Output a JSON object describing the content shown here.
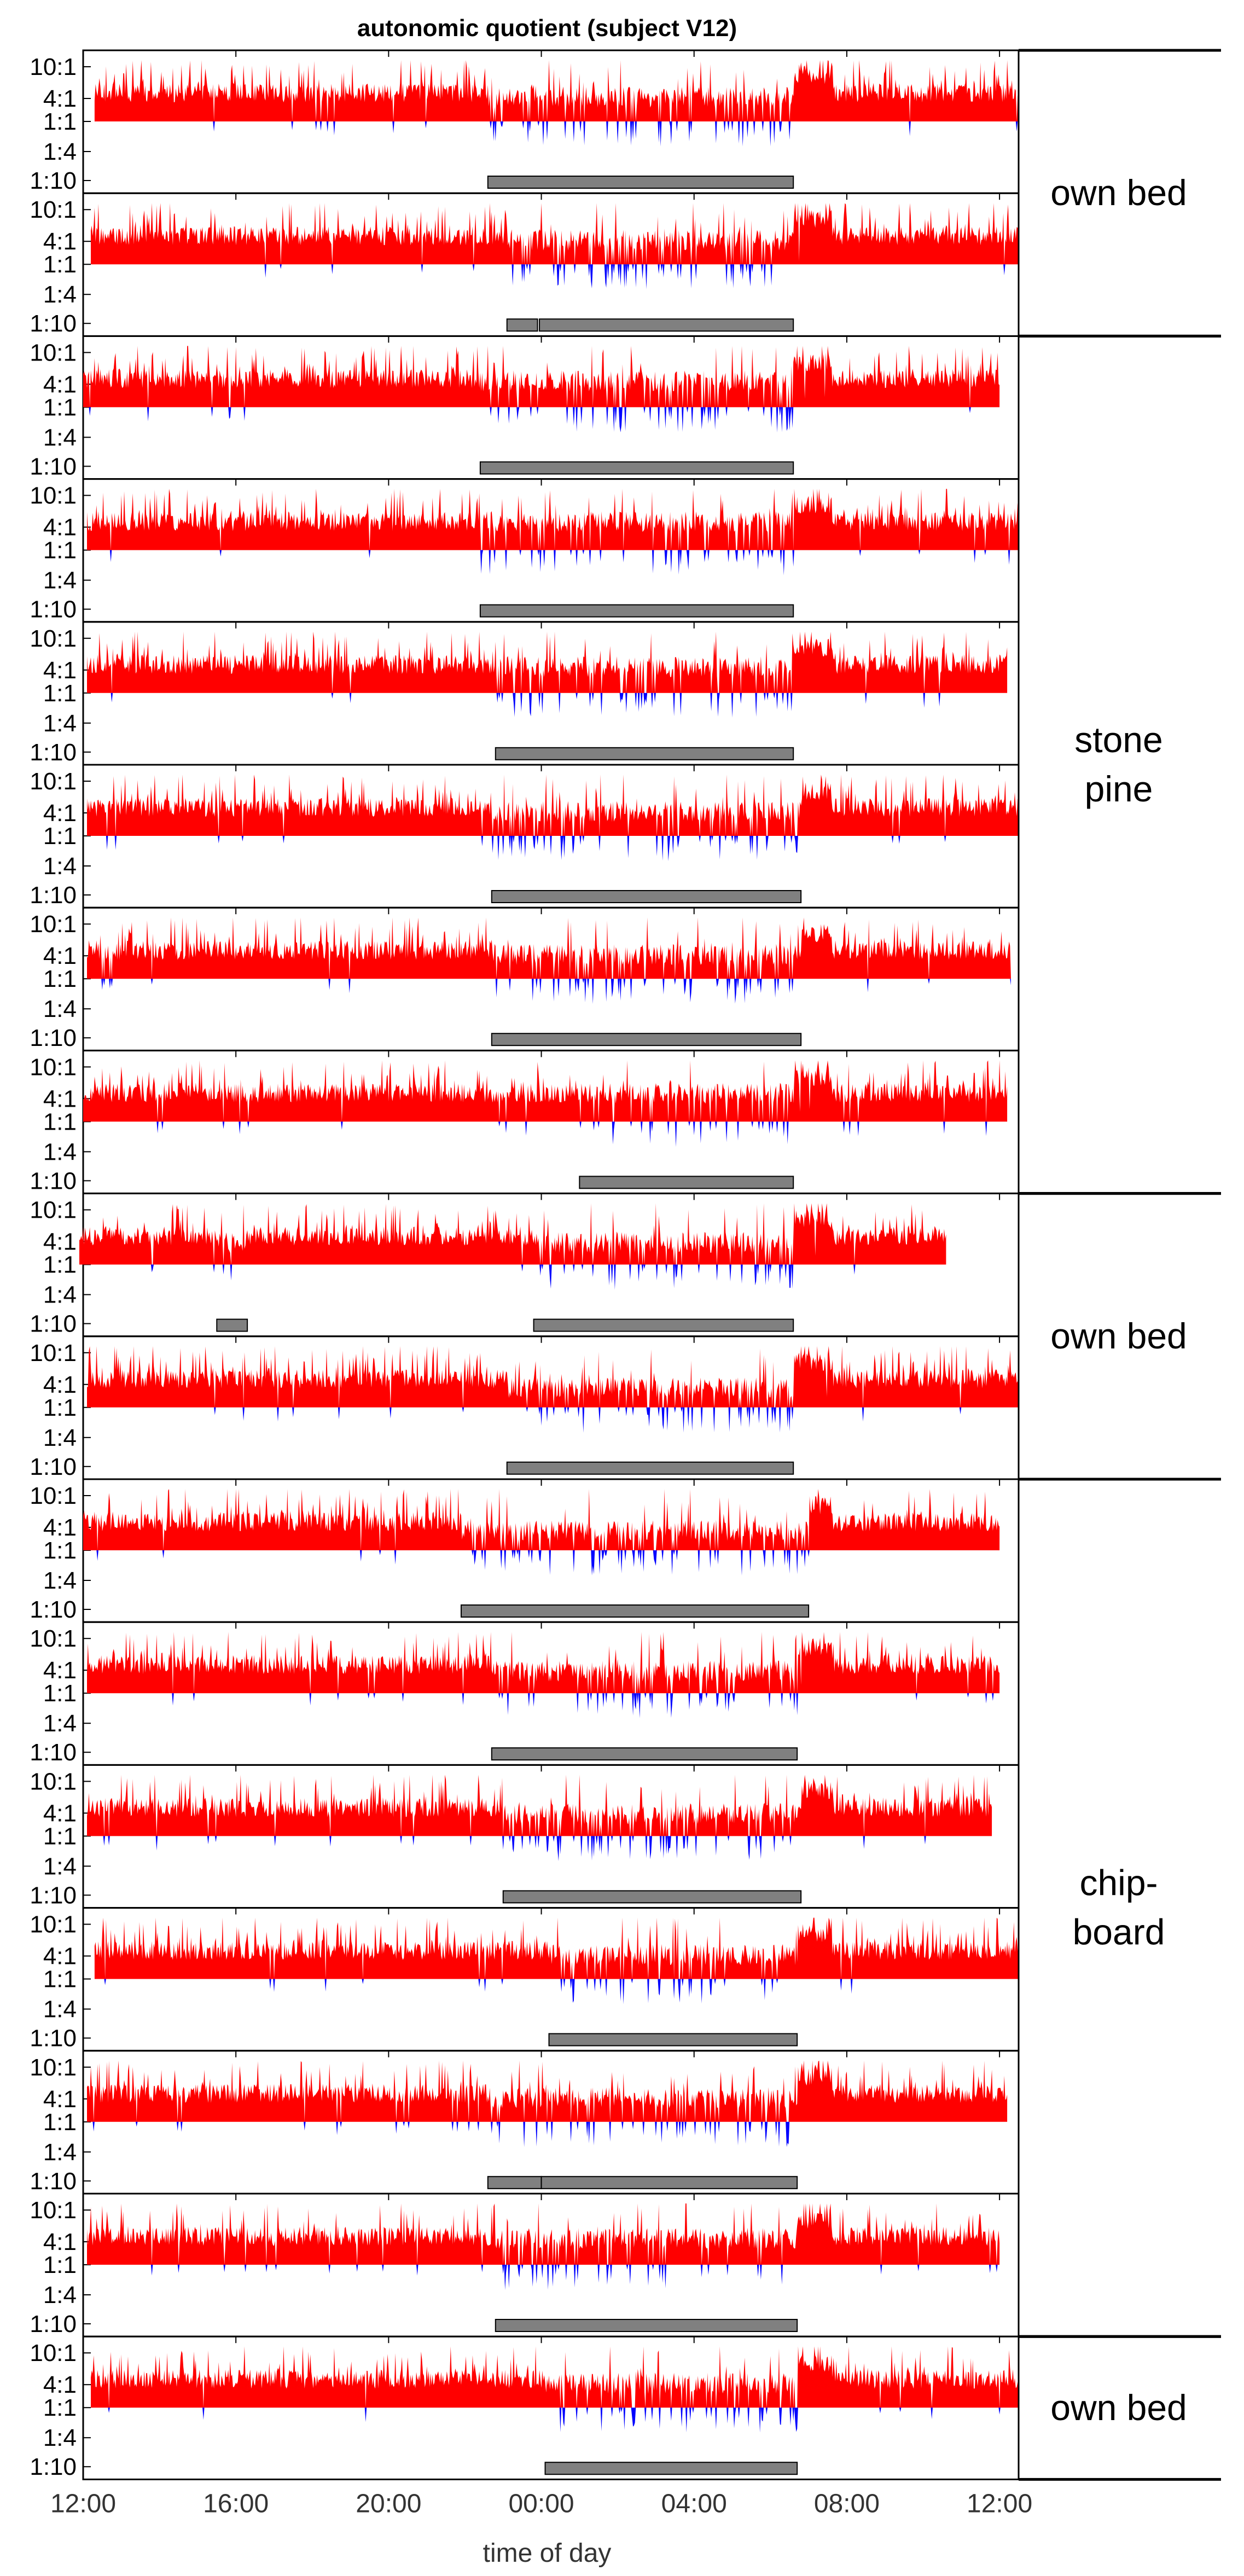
{
  "chart_data": {
    "type": "area",
    "title": "autonomic quotient (subject V12)",
    "xlabel": "time of day",
    "ylabel": "",
    "x_ticks": [
      "12:00",
      "16:00",
      "20:00",
      "00:00",
      "04:00",
      "08:00",
      "12:00"
    ],
    "x_range_hours": [
      12,
      36.5
    ],
    "y_ticks": [
      "10:1",
      "4:1",
      "1:1",
      "1:4",
      "1:10"
    ],
    "y_scale": "log ratio",
    "colors": {
      "above_1_1": "#ff0000",
      "below_1_1": "#0000ff",
      "rest_bar": "#808080"
    },
    "groups": [
      {
        "label": "own bed",
        "nights": [
          1,
          2
        ]
      },
      {
        "label": "stone pine",
        "nights": [
          3,
          4,
          5,
          6,
          7,
          8
        ]
      },
      {
        "label": "own bed",
        "nights": [
          9,
          10
        ]
      },
      {
        "label": "chip-board",
        "nights": [
          11,
          12,
          13,
          14,
          15,
          16
        ]
      },
      {
        "label": "own bed",
        "nights": [
          17
        ]
      }
    ],
    "nights": [
      {
        "night": 1,
        "start": 12.3,
        "end": 36.5,
        "dip_level": 1.0,
        "rest_periods": [
          [
            22.6,
            30.6
          ]
        ]
      },
      {
        "night": 2,
        "start": 12.2,
        "end": 36.5,
        "dip_level": 1.0,
        "rest_periods": [
          [
            23.1,
            23.9
          ],
          [
            23.95,
            30.6
          ]
        ]
      },
      {
        "night": 3,
        "start": 12.0,
        "end": 36.0,
        "dip_level": 1.1,
        "rest_periods": [
          [
            22.4,
            30.6
          ]
        ]
      },
      {
        "night": 4,
        "start": 12.1,
        "end": 36.5,
        "dip_level": 1.2,
        "rest_periods": [
          [
            22.4,
            30.6
          ]
        ]
      },
      {
        "night": 5,
        "start": 12.1,
        "end": 36.2,
        "dip_level": 1.1,
        "rest_periods": [
          [
            22.8,
            30.6
          ]
        ]
      },
      {
        "night": 6,
        "start": 12.1,
        "end": 36.5,
        "dip_level": 1.0,
        "rest_periods": [
          [
            22.7,
            30.8
          ]
        ]
      },
      {
        "night": 7,
        "start": 12.1,
        "end": 36.3,
        "dip_level": 1.0,
        "rest_periods": [
          [
            22.7,
            30.8
          ]
        ]
      },
      {
        "night": 8,
        "start": 12.0,
        "end": 36.2,
        "dip_level": 1.2,
        "rest_periods": [
          [
            25.0,
            30.6
          ]
        ]
      },
      {
        "night": 9,
        "start": 11.9,
        "end": 34.6,
        "dip_level": 0.9,
        "rest_periods": [
          [
            15.5,
            16.3
          ],
          [
            23.8,
            30.6
          ]
        ]
      },
      {
        "night": 10,
        "start": 12.1,
        "end": 36.5,
        "dip_level": 0.8,
        "rest_periods": [
          [
            23.1,
            30.6
          ]
        ]
      },
      {
        "night": 11,
        "start": 12.0,
        "end": 36.0,
        "dip_level": 0.8,
        "rest_periods": [
          [
            21.9,
            31.0
          ]
        ]
      },
      {
        "night": 12,
        "start": 12.1,
        "end": 36.0,
        "dip_level": 0.9,
        "rest_periods": [
          [
            22.7,
            30.7
          ]
        ]
      },
      {
        "night": 13,
        "start": 12.1,
        "end": 35.8,
        "dip_level": 0.9,
        "rest_periods": [
          [
            23.0,
            30.8
          ]
        ]
      },
      {
        "night": 14,
        "start": 12.3,
        "end": 36.5,
        "dip_level": 1.0,
        "rest_periods": [
          [
            24.2,
            30.7
          ]
        ]
      },
      {
        "night": 15,
        "start": 12.1,
        "end": 36.2,
        "dip_level": 1.0,
        "rest_periods": [
          [
            22.6,
            24.0
          ],
          [
            24.0,
            30.7
          ]
        ]
      },
      {
        "night": 16,
        "start": 12.1,
        "end": 36.0,
        "dip_level": 1.1,
        "rest_periods": [
          [
            22.8,
            30.7
          ]
        ]
      },
      {
        "night": 17,
        "start": 12.2,
        "end": 36.5,
        "dip_level": 1.0,
        "rest_periods": [
          [
            24.1,
            30.7
          ]
        ]
      }
    ]
  }
}
